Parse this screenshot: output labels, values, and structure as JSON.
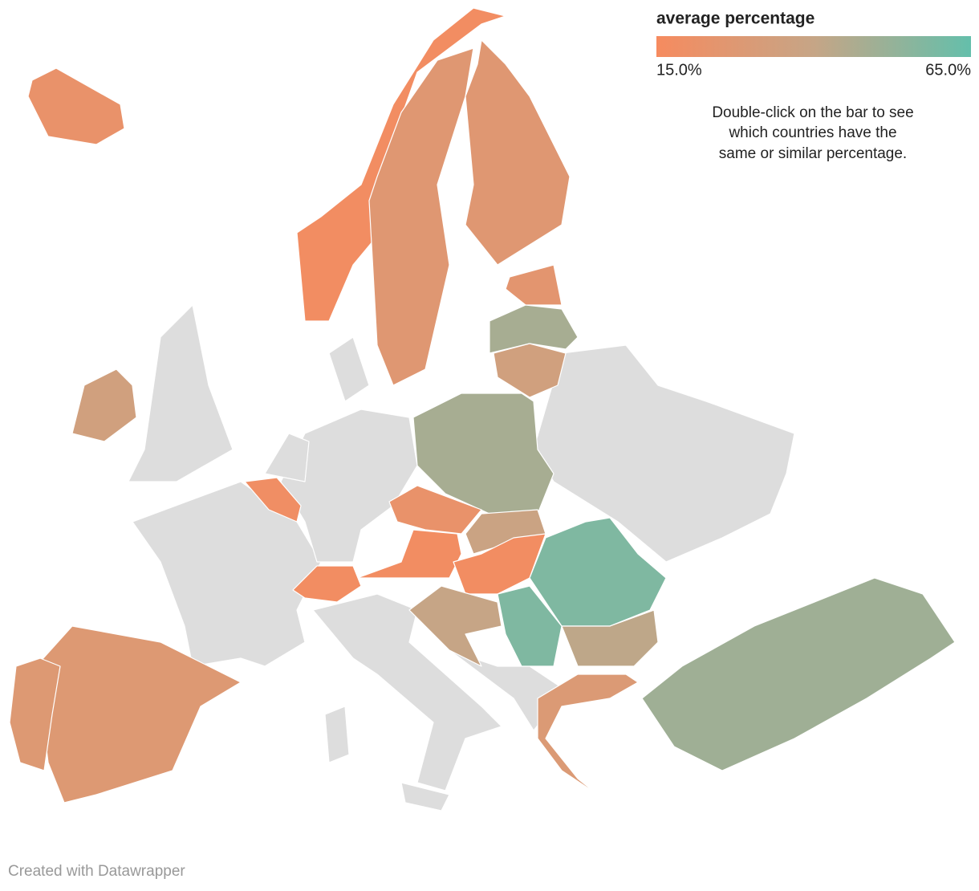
{
  "legend": {
    "title": "average percentage",
    "min": {
      "value": 15,
      "label": "15.0%"
    },
    "max": {
      "value": 65,
      "label": "65.0%"
    },
    "colors": [
      "#f68b5f",
      "#c6a586",
      "#64bfab"
    ]
  },
  "note": [
    "Double-click on the bar to see",
    "which countries have the",
    "same or similar percentage."
  ],
  "regions": {
    "values": [
      17,
      27,
      27,
      22,
      25,
      48,
      35,
      48,
      35,
      18,
      22,
      38,
      17,
      17,
      17,
      40,
      58,
      58,
      42,
      29,
      50,
      28,
      28
    ],
    "no_data_color": "#dddddd",
    "border_color": "#ffffff"
  },
  "footer": "Created with Datawrapper"
}
